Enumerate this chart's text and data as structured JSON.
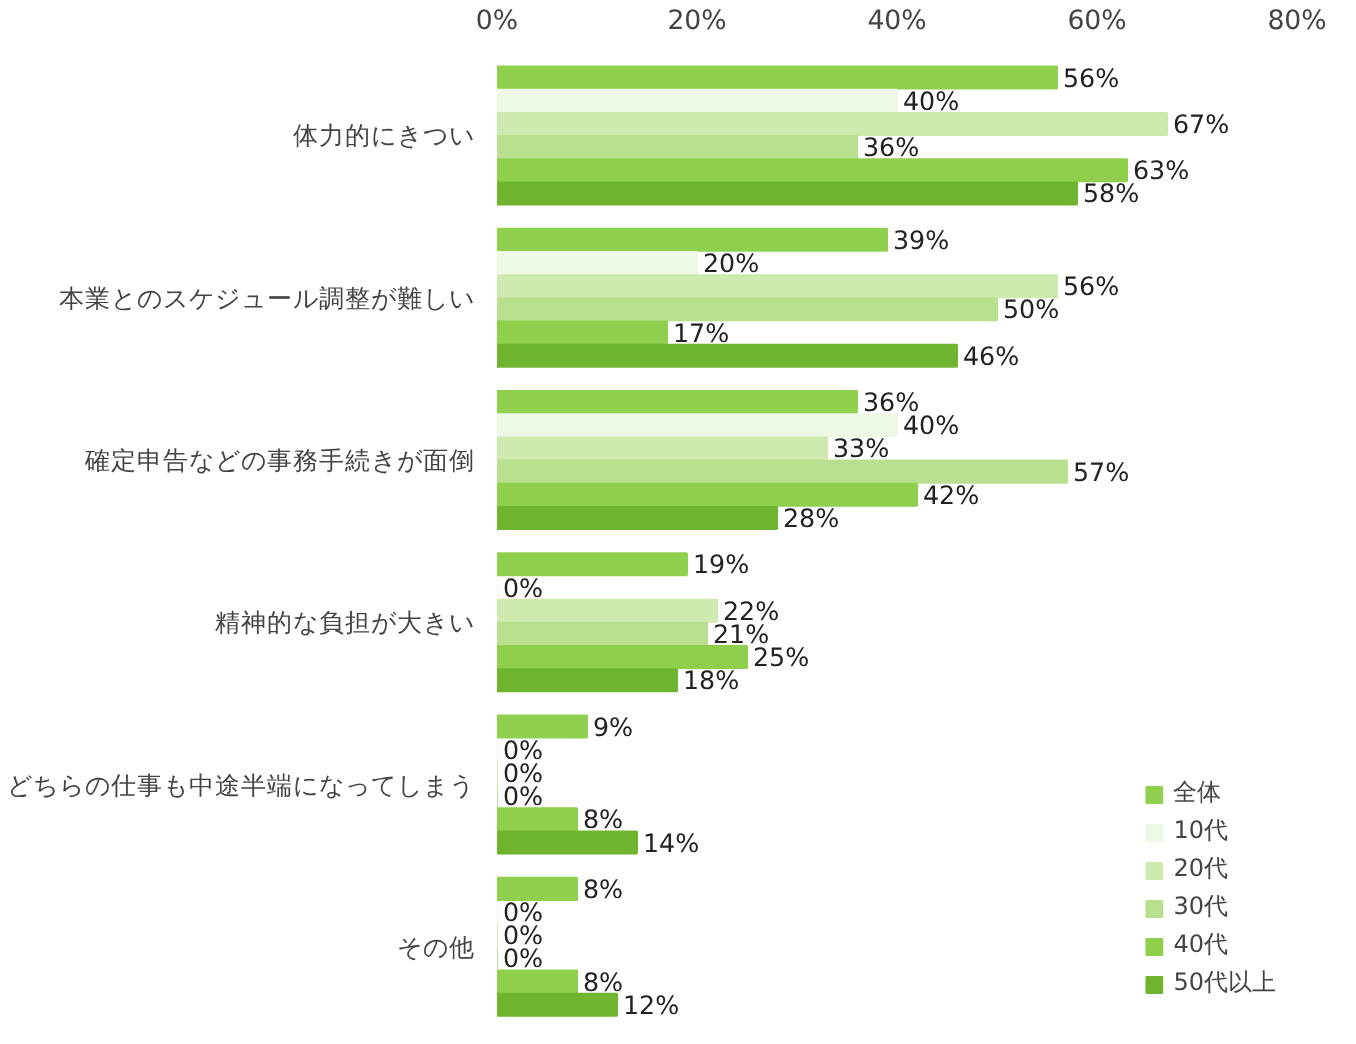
{
  "chart_data": {
    "type": "bar",
    "orientation": "horizontal",
    "categories": [
      "体力的にきつい",
      "本業とのスケジュール調整が難しい",
      "確定申告などの事務手続きが面倒",
      "精神的な負担が大きい",
      "どちらの仕事も中途半端になってしまう",
      "その他"
    ],
    "xlim": [
      0,
      80
    ],
    "xticks": [
      {
        "value": 0,
        "label": "0%"
      },
      {
        "value": 20,
        "label": "20%"
      },
      {
        "value": 40,
        "label": "40%"
      },
      {
        "value": 60,
        "label": "60%"
      },
      {
        "value": 80,
        "label": "80%"
      }
    ],
    "grid": false,
    "legend": "bottom right",
    "series": [
      {
        "name": "全体",
        "color": "#8fd14f",
        "values": [
          56,
          39,
          36,
          19,
          9,
          8
        ],
        "value_labels": [
          "56%",
          "39%",
          "36%",
          "19%",
          "9%",
          "8%"
        ]
      },
      {
        "name": "10代",
        "color": "#eef8e6",
        "values": [
          40,
          20,
          40,
          0,
          0,
          0
        ],
        "value_labels": [
          "40%",
          "20%",
          "40%",
          "0%",
          "0%",
          "0%"
        ]
      },
      {
        "name": "20代",
        "color": "#cfeaaf",
        "values": [
          67,
          56,
          33,
          22,
          0,
          0
        ],
        "value_labels": [
          "67%",
          "56%",
          "33%",
          "22%",
          "0%",
          "0%"
        ]
      },
      {
        "name": "30代",
        "color": "#b9e08f",
        "values": [
          36,
          50,
          57,
          21,
          0,
          0
        ],
        "value_labels": [
          "36%",
          "50%",
          "57%",
          "21%",
          "0%",
          "0%"
        ]
      },
      {
        "name": "40代",
        "color": "#8ed04c",
        "values": [
          63,
          17,
          42,
          25,
          8,
          8
        ],
        "value_labels": [
          "63%",
          "17%",
          "42%",
          "25%",
          "8%",
          "8%"
        ]
      },
      {
        "name": "50代以上",
        "color": "#6fb52f",
        "values": [
          58,
          46,
          28,
          18,
          14,
          12
        ],
        "value_labels": [
          "58%",
          "46%",
          "28%",
          "18%",
          "14%",
          "12%"
        ]
      }
    ]
  }
}
